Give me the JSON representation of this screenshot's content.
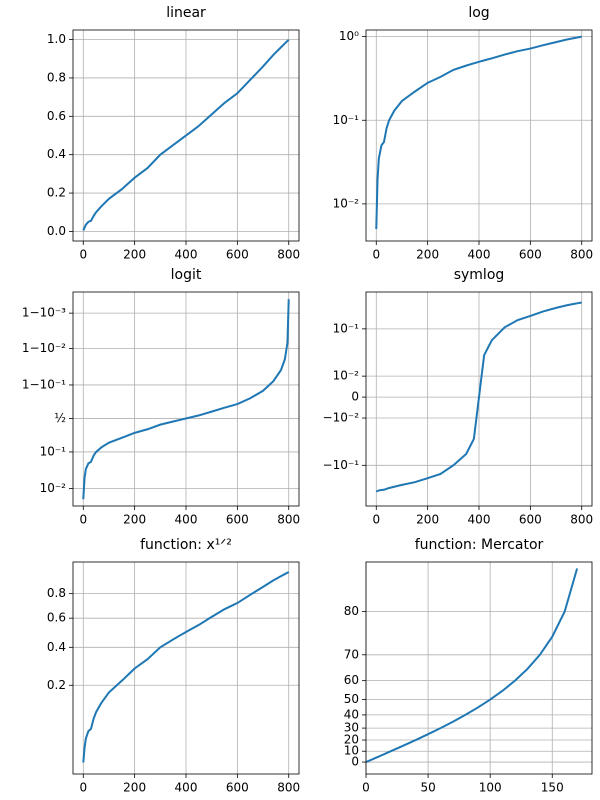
{
  "chart_data": [
    {
      "type": "line",
      "title": "linear",
      "yscale": "linear",
      "grid": true,
      "color": "#1f77b4",
      "x": [
        0,
        5,
        10,
        20,
        30,
        40,
        50,
        70,
        100,
        150,
        200,
        250,
        300,
        350,
        380,
        395,
        400,
        405,
        420,
        450,
        500,
        550,
        600,
        650,
        700,
        740,
        770,
        785,
        795,
        800
      ],
      "values": [
        0.005,
        0.02,
        0.035,
        0.05,
        0.055,
        0.08,
        0.1,
        0.13,
        0.17,
        0.22,
        0.28,
        0.33,
        0.4,
        0.45,
        0.48,
        0.495,
        0.5,
        0.505,
        0.52,
        0.55,
        0.61,
        0.67,
        0.72,
        0.79,
        0.86,
        0.92,
        0.96,
        0.98,
        0.993,
        0.9996
      ],
      "xlim": [
        -40,
        840
      ],
      "xticks": [
        0,
        200,
        400,
        600,
        800
      ],
      "ylim": [
        -0.05,
        1.05
      ],
      "yticks": [
        {
          "value": 0,
          "label": "0.0"
        },
        0.2,
        0.4,
        0.6,
        0.8,
        {
          "value": 1,
          "label": "1.0"
        }
      ]
    },
    {
      "type": "line",
      "title": "log",
      "yscale": "log",
      "grid": true,
      "color": "#1f77b4",
      "x": [
        0,
        5,
        10,
        20,
        30,
        40,
        50,
        70,
        100,
        150,
        200,
        250,
        300,
        350,
        380,
        395,
        400,
        405,
        420,
        450,
        500,
        550,
        600,
        650,
        700,
        740,
        770,
        785,
        795,
        800
      ],
      "values": [
        0.005,
        0.02,
        0.035,
        0.05,
        0.055,
        0.08,
        0.1,
        0.13,
        0.17,
        0.22,
        0.28,
        0.33,
        0.4,
        0.45,
        0.48,
        0.495,
        0.5,
        0.505,
        0.52,
        0.55,
        0.61,
        0.67,
        0.72,
        0.79,
        0.86,
        0.92,
        0.96,
        0.98,
        0.993,
        0.9996
      ],
      "xlim": [
        -40,
        840
      ],
      "xticks": [
        0,
        200,
        400,
        600,
        800
      ],
      "ylim": [
        0.0036,
        1.2
      ],
      "yticks": [
        {
          "value": 0.01,
          "label": "10⁻²"
        },
        {
          "value": 0.1,
          "label": "10⁻¹"
        },
        {
          "value": 1,
          "label": "10⁰"
        }
      ]
    },
    {
      "type": "line",
      "title": "logit",
      "yscale": "logit",
      "grid": true,
      "color": "#1f77b4",
      "x": [
        0,
        5,
        10,
        20,
        30,
        40,
        50,
        70,
        100,
        150,
        200,
        250,
        300,
        350,
        380,
        395,
        400,
        405,
        420,
        450,
        500,
        550,
        600,
        650,
        700,
        740,
        770,
        785,
        795,
        800
      ],
      "values": [
        0.005,
        0.02,
        0.035,
        0.05,
        0.055,
        0.08,
        0.1,
        0.13,
        0.17,
        0.22,
        0.28,
        0.33,
        0.4,
        0.45,
        0.48,
        0.495,
        0.5,
        0.505,
        0.52,
        0.55,
        0.61,
        0.67,
        0.72,
        0.79,
        0.86,
        0.92,
        0.96,
        0.98,
        0.993,
        0.9996
      ],
      "xlim": [
        -40,
        840
      ],
      "xticks": [
        0,
        200,
        400,
        600,
        800
      ],
      "ylim": [
        0.0032,
        0.99975
      ],
      "yticks": [
        {
          "value": 0.01,
          "label": "10⁻²"
        },
        {
          "value": 0.1,
          "label": "10⁻¹"
        },
        {
          "value": 0.5,
          "label": "½"
        },
        {
          "value": 0.9,
          "label": "1−10⁻¹"
        },
        {
          "value": 0.99,
          "label": "1−10⁻²"
        },
        {
          "value": 0.999,
          "label": "1−10⁻³"
        }
      ]
    },
    {
      "type": "line",
      "title": "symlog",
      "yscale": "symlog",
      "linthresh": 0.02,
      "grid": true,
      "color": "#1f77b4",
      "x": [
        0,
        5,
        10,
        20,
        30,
        40,
        50,
        70,
        100,
        150,
        200,
        250,
        300,
        350,
        380,
        395,
        400,
        405,
        420,
        450,
        500,
        550,
        600,
        650,
        700,
        740,
        770,
        785,
        795,
        800
      ],
      "values": [
        -0.495,
        -0.48,
        -0.465,
        -0.45,
        -0.445,
        -0.42,
        -0.4,
        -0.37,
        -0.33,
        -0.28,
        -0.22,
        -0.17,
        -0.1,
        -0.05,
        -0.02,
        -0.005,
        0,
        0.005,
        0.02,
        0.05,
        0.11,
        0.17,
        0.22,
        0.29,
        0.36,
        0.42,
        0.46,
        0.48,
        0.493,
        0.4996
      ],
      "xlim": [
        -40,
        840
      ],
      "xticks": [
        0,
        200,
        400,
        600,
        800
      ],
      "ylim": [
        -1.2,
        0.95
      ],
      "yticks": [
        {
          "value": -0.1,
          "label": "−10⁻¹"
        },
        {
          "value": -0.01,
          "label": "−10⁻²"
        },
        0,
        {
          "value": 0.01,
          "label": "10⁻²"
        },
        {
          "value": 0.1,
          "label": "10⁻¹"
        }
      ]
    },
    {
      "type": "line",
      "title": "function: x¹ᐟ²",
      "yscale": "sqrt",
      "grid": true,
      "color": "#1f77b4",
      "x": [
        0,
        5,
        10,
        20,
        30,
        40,
        50,
        70,
        100,
        150,
        200,
        250,
        300,
        350,
        380,
        395,
        400,
        405,
        420,
        450,
        500,
        550,
        600,
        650,
        700,
        740,
        770,
        785,
        795,
        800
      ],
      "values": [
        0.005,
        0.02,
        0.035,
        0.05,
        0.055,
        0.08,
        0.1,
        0.13,
        0.17,
        0.22,
        0.28,
        0.33,
        0.4,
        0.45,
        0.48,
        0.495,
        0.5,
        0.505,
        0.52,
        0.55,
        0.61,
        0.67,
        0.72,
        0.79,
        0.86,
        0.92,
        0.96,
        0.98,
        0.993,
        0.9996
      ],
      "xlim": [
        -40,
        840
      ],
      "xticks": [
        0,
        200,
        400,
        600,
        800
      ],
      "ylim": [
        0.0002,
        1.1
      ],
      "yticks": [
        0.2,
        0.4,
        0.6,
        0.8
      ]
    },
    {
      "type": "line",
      "title": "function: Mercator",
      "yscale": "mercator",
      "grid": true,
      "color": "#1f77b4",
      "x": [
        0,
        10,
        20,
        30,
        40,
        50,
        60,
        70,
        80,
        90,
        100,
        110,
        120,
        130,
        140,
        150,
        160,
        170
      ],
      "values": [
        0,
        5,
        10,
        15,
        20,
        25,
        30,
        35,
        40,
        45,
        50,
        55,
        60,
        65,
        70,
        75,
        80,
        85
      ],
      "xlim": [
        0,
        182
      ],
      "xticks": [
        0,
        50,
        100,
        150
      ],
      "ylim": [
        -11,
        85.5
      ],
      "yticks": [
        0,
        10,
        20,
        30,
        40,
        50,
        60,
        70,
        80
      ]
    }
  ]
}
